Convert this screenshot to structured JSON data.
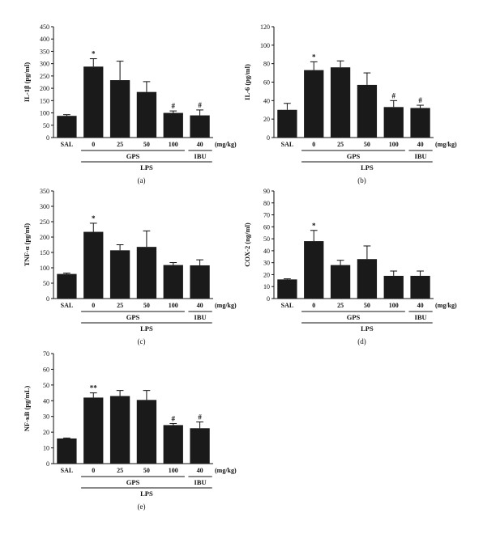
{
  "chart_data": [
    {
      "type": "bar",
      "panel_label": "(a)",
      "ylabel": "IL-1β (pg/ml)",
      "ylim": [
        0,
        450
      ],
      "yticks": [
        0,
        50,
        100,
        150,
        200,
        250,
        300,
        350,
        400,
        450
      ],
      "categories": [
        "SAL",
        "0",
        "25",
        "50",
        "100",
        "40"
      ],
      "values": [
        88,
        288,
        233,
        185,
        100,
        90
      ],
      "errors": [
        5,
        32,
        77,
        42,
        8,
        22
      ],
      "significance": [
        "",
        "*",
        "",
        "",
        "#",
        "#"
      ],
      "unit_label": "(mg/kg)",
      "groups": [
        "GPS",
        "IBU"
      ],
      "treatment": "LPS",
      "bar_color": "#1a1a1a"
    },
    {
      "type": "bar",
      "panel_label": "(b)",
      "ylabel": "IL-6 (pg/ml)",
      "ylim": [
        0,
        120
      ],
      "yticks": [
        0,
        20,
        40,
        60,
        80,
        100,
        120
      ],
      "categories": [
        "SAL",
        "0",
        "25",
        "50",
        "100",
        "40"
      ],
      "values": [
        30,
        73,
        76,
        57,
        33,
        32
      ],
      "errors": [
        7,
        9,
        7,
        13,
        7,
        3
      ],
      "significance": [
        "",
        "*",
        "",
        "",
        "#",
        "#"
      ],
      "unit_label": "(mg/kg)",
      "groups": [
        "GPS",
        "IBU"
      ],
      "treatment": "LPS",
      "bar_color": "#1a1a1a"
    },
    {
      "type": "bar",
      "panel_label": "(c)",
      "ylabel": "TNF-α (pg/ml)",
      "ylim": [
        0,
        350
      ],
      "yticks": [
        0,
        50,
        100,
        150,
        200,
        250,
        300,
        350
      ],
      "categories": [
        "SAL",
        "0",
        "25",
        "50",
        "100",
        "40"
      ],
      "values": [
        80,
        217,
        157,
        168,
        109,
        108
      ],
      "errors": [
        3,
        28,
        18,
        52,
        8,
        18
      ],
      "significance": [
        "",
        "*",
        "",
        "",
        "",
        ""
      ],
      "unit_label": "(mg/kg)",
      "groups": [
        "GPS",
        "IBU"
      ],
      "treatment": "LPS",
      "bar_color": "#1a1a1a"
    },
    {
      "type": "bar",
      "panel_label": "(d)",
      "ylabel": "COX-2 (ng/ml)",
      "ylim": [
        0,
        90
      ],
      "yticks": [
        0,
        10,
        20,
        30,
        40,
        50,
        60,
        70,
        80,
        90
      ],
      "categories": [
        "SAL",
        "0",
        "25",
        "50",
        "100",
        "40"
      ],
      "values": [
        16,
        48,
        28,
        33,
        19,
        19
      ],
      "errors": [
        0.5,
        9,
        4,
        11,
        4,
        4
      ],
      "significance": [
        "",
        "*",
        "",
        "",
        "",
        ""
      ],
      "unit_label": "(mg/kg)",
      "groups": [
        "GPS",
        "IBU"
      ],
      "treatment": "LPS",
      "bar_color": "#1a1a1a"
    },
    {
      "type": "bar",
      "panel_label": "(e)",
      "ylabel": "NF-κB (pg/mL)",
      "ylim": [
        0,
        70
      ],
      "yticks": [
        0,
        10,
        20,
        30,
        40,
        50,
        60,
        70
      ],
      "categories": [
        "SAL",
        "0",
        "25",
        "50",
        "100",
        "40"
      ],
      "values": [
        16,
        42,
        43,
        40.5,
        24.5,
        22.5
      ],
      "errors": [
        0.3,
        3,
        3.5,
        6,
        1,
        4
      ],
      "significance": [
        "",
        "**",
        "",
        "",
        "#",
        "#"
      ],
      "unit_label": "(mg/kg)",
      "groups": [
        "GPS",
        "IBU"
      ],
      "treatment": "LPS",
      "bar_color": "#1a1a1a"
    }
  ]
}
